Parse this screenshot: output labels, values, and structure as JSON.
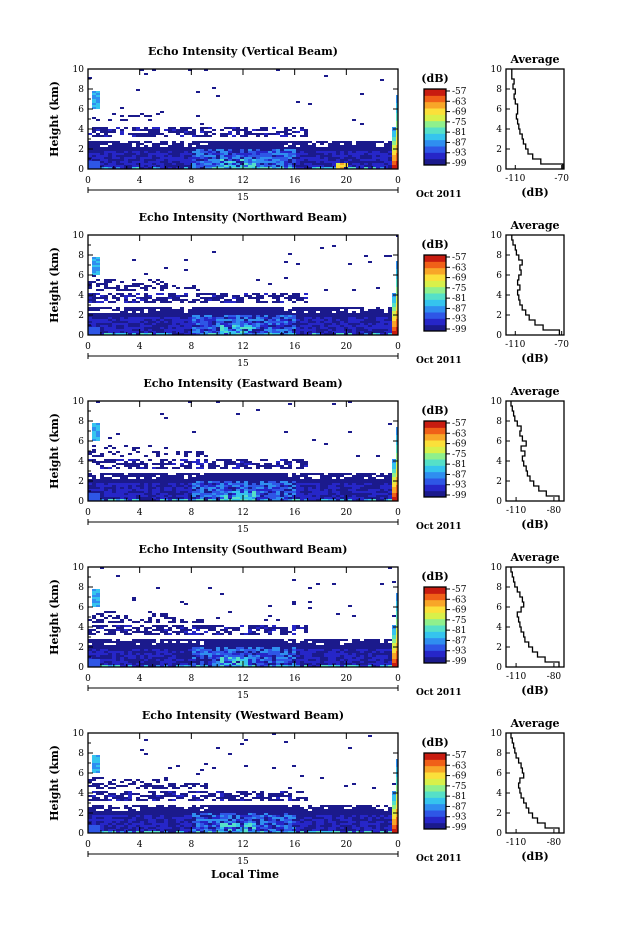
{
  "xlabel": "Local Time",
  "date_label": "Oct 2011",
  "day_label": "15",
  "colorbar_unit": "(dB)",
  "colorbar_ticks": [
    "-57",
    "-63",
    "-69",
    "-75",
    "-81",
    "-87",
    "-93",
    "-99"
  ],
  "colormap": [
    "#1b1a8c",
    "#2626c8",
    "#2e56e6",
    "#2f8ef0",
    "#35c4ee",
    "#55e0c8",
    "#8ff08c",
    "#d8f04a",
    "#fbe03a",
    "#f8a628",
    "#f06018",
    "#c81c10"
  ],
  "avg_title": "Average",
  "avg_xlabel": "(dB)",
  "chart_data": [
    {
      "type": "heatmap",
      "title": "Echo Intensity (Vertical Beam)",
      "ylabel": "Height (km)",
      "xlabel": "Local Time",
      "x_ticks": [
        "0",
        "4",
        "8",
        "12",
        "16",
        "20",
        "0"
      ],
      "y_ticks": [
        "0",
        "2",
        "4",
        "6",
        "8",
        "10"
      ],
      "xlim": [
        0,
        24
      ],
      "ylim": [
        0,
        10
      ],
      "colorbar": {
        "label": "(dB)",
        "range": [
          -99,
          -57
        ]
      },
      "average_profile": {
        "title": "Average",
        "xlabel": "(dB)",
        "x_ticks": [
          "-110",
          "-70"
        ],
        "xlim": [
          -118,
          -68
        ],
        "y_ticks": [
          "0",
          "2",
          "4",
          "6",
          "8",
          "10"
        ],
        "height_km": [
          0,
          0.5,
          1,
          1.5,
          2,
          2.5,
          3,
          3.5,
          4,
          4.5,
          5,
          5.5,
          6,
          6.5,
          7,
          7.5,
          8,
          8.5,
          9,
          9.5
        ],
        "db": [
          -69,
          -88,
          -95,
          -99,
          -101,
          -103,
          -104,
          -106,
          -107,
          -108,
          -109,
          -108,
          -108,
          -110,
          -111,
          -110,
          -112,
          -111,
          -113,
          -113
        ]
      }
    },
    {
      "type": "heatmap",
      "title": "Echo Intensity (Northward Beam)",
      "ylabel": "Height (km)",
      "xlabel": "Local Time",
      "x_ticks": [
        "0",
        "4",
        "8",
        "12",
        "16",
        "20",
        "0"
      ],
      "y_ticks": [
        "0",
        "2",
        "4",
        "6",
        "8",
        "10"
      ],
      "xlim": [
        0,
        24
      ],
      "ylim": [
        0,
        10
      ],
      "colorbar": {
        "label": "(dB)",
        "range": [
          -99,
          -57
        ]
      },
      "average_profile": {
        "title": "Average",
        "xlabel": "(dB)",
        "x_ticks": [
          "-110",
          "-70"
        ],
        "xlim": [
          -118,
          -68
        ],
        "y_ticks": [
          "0",
          "2",
          "4",
          "6",
          "8",
          "10"
        ],
        "height_km": [
          0,
          0.5,
          1,
          1.5,
          2,
          2.5,
          3,
          3.5,
          4,
          4.5,
          5,
          5.5,
          6,
          6.5,
          7,
          7.5,
          8,
          8.5,
          9,
          9.5
        ],
        "db": [
          -72,
          -86,
          -93,
          -98,
          -101,
          -104,
          -106,
          -107,
          -108,
          -106,
          -108,
          -107,
          -105,
          -106,
          -104,
          -107,
          -109,
          -110,
          -112,
          -113
        ]
      }
    },
    {
      "type": "heatmap",
      "title": "Echo Intensity (Eastward Beam)",
      "ylabel": "Height (km)",
      "xlabel": "Local Time",
      "x_ticks": [
        "0",
        "4",
        "8",
        "12",
        "16",
        "20",
        "0"
      ],
      "y_ticks": [
        "0",
        "2",
        "4",
        "6",
        "8",
        "10"
      ],
      "xlim": [
        0,
        24
      ],
      "ylim": [
        0,
        10
      ],
      "colorbar": {
        "label": "(dB)",
        "range": [
          -99,
          -57
        ]
      },
      "average_profile": {
        "title": "Average",
        "xlabel": "(dB)",
        "x_ticks": [
          "-110",
          "-80"
        ],
        "xlim": [
          -118,
          -72
        ],
        "y_ticks": [
          "0",
          "2",
          "4",
          "6",
          "8",
          "10"
        ],
        "height_km": [
          0,
          0.5,
          1,
          1.5,
          2,
          2.5,
          3,
          3.5,
          4,
          4.5,
          5,
          5.5,
          6,
          6.5,
          7,
          7.5,
          8,
          8.5,
          9,
          9.5
        ],
        "db": [
          -76,
          -86,
          -92,
          -96,
          -99,
          -101,
          -102,
          -104,
          -105,
          -103,
          -106,
          -102,
          -105,
          -107,
          -106,
          -109,
          -111,
          -112,
          -113,
          -114
        ]
      }
    },
    {
      "type": "heatmap",
      "title": "Echo Intensity (Southward Beam)",
      "ylabel": "Height (km)",
      "xlabel": "Local Time",
      "x_ticks": [
        "0",
        "4",
        "8",
        "12",
        "16",
        "20",
        "0"
      ],
      "y_ticks": [
        "0",
        "2",
        "4",
        "6",
        "8",
        "10"
      ],
      "xlim": [
        0,
        24
      ],
      "ylim": [
        0,
        10
      ],
      "colorbar": {
        "label": "(dB)",
        "range": [
          -99,
          -57
        ]
      },
      "average_profile": {
        "title": "Average",
        "xlabel": "(dB)",
        "x_ticks": [
          "-110",
          "-80"
        ],
        "xlim": [
          -118,
          -72
        ],
        "y_ticks": [
          "0",
          "2",
          "4",
          "6",
          "8",
          "10"
        ],
        "height_km": [
          0,
          0.5,
          1,
          1.5,
          2,
          2.5,
          3,
          3.5,
          4,
          4.5,
          5,
          5.5,
          6,
          6.5,
          7,
          7.5,
          8,
          8.5,
          9,
          9.5
        ],
        "db": [
          -76,
          -87,
          -93,
          -97,
          -100,
          -103,
          -104,
          -106,
          -107,
          -108,
          -109,
          -106,
          -104,
          -105,
          -107,
          -109,
          -111,
          -112,
          -113,
          -114
        ]
      }
    },
    {
      "type": "heatmap",
      "title": "Echo Intensity (Westward Beam)",
      "ylabel": "Height (km)",
      "xlabel": "Local Time",
      "x_ticks": [
        "0",
        "4",
        "8",
        "12",
        "16",
        "20",
        "0"
      ],
      "y_ticks": [
        "0",
        "2",
        "4",
        "6",
        "8",
        "10"
      ],
      "xlim": [
        0,
        24
      ],
      "ylim": [
        0,
        10
      ],
      "colorbar": {
        "label": "(dB)",
        "range": [
          -99,
          -57
        ]
      },
      "average_profile": {
        "title": "Average",
        "xlabel": "(dB)",
        "x_ticks": [
          "-110",
          "-80"
        ],
        "xlim": [
          -118,
          -72
        ],
        "y_ticks": [
          "0",
          "2",
          "4",
          "6",
          "8",
          "10"
        ],
        "height_km": [
          0,
          0.5,
          1,
          1.5,
          2,
          2.5,
          3,
          3.5,
          4,
          4.5,
          5,
          5.5,
          6,
          6.5,
          7,
          7.5,
          8,
          8.5,
          9,
          9.5
        ],
        "db": [
          -76,
          -87,
          -93,
          -97,
          -100,
          -102,
          -104,
          -106,
          -107,
          -108,
          -107,
          -104,
          -105,
          -106,
          -108,
          -110,
          -111,
          -112,
          -113,
          -114
        ]
      }
    }
  ]
}
